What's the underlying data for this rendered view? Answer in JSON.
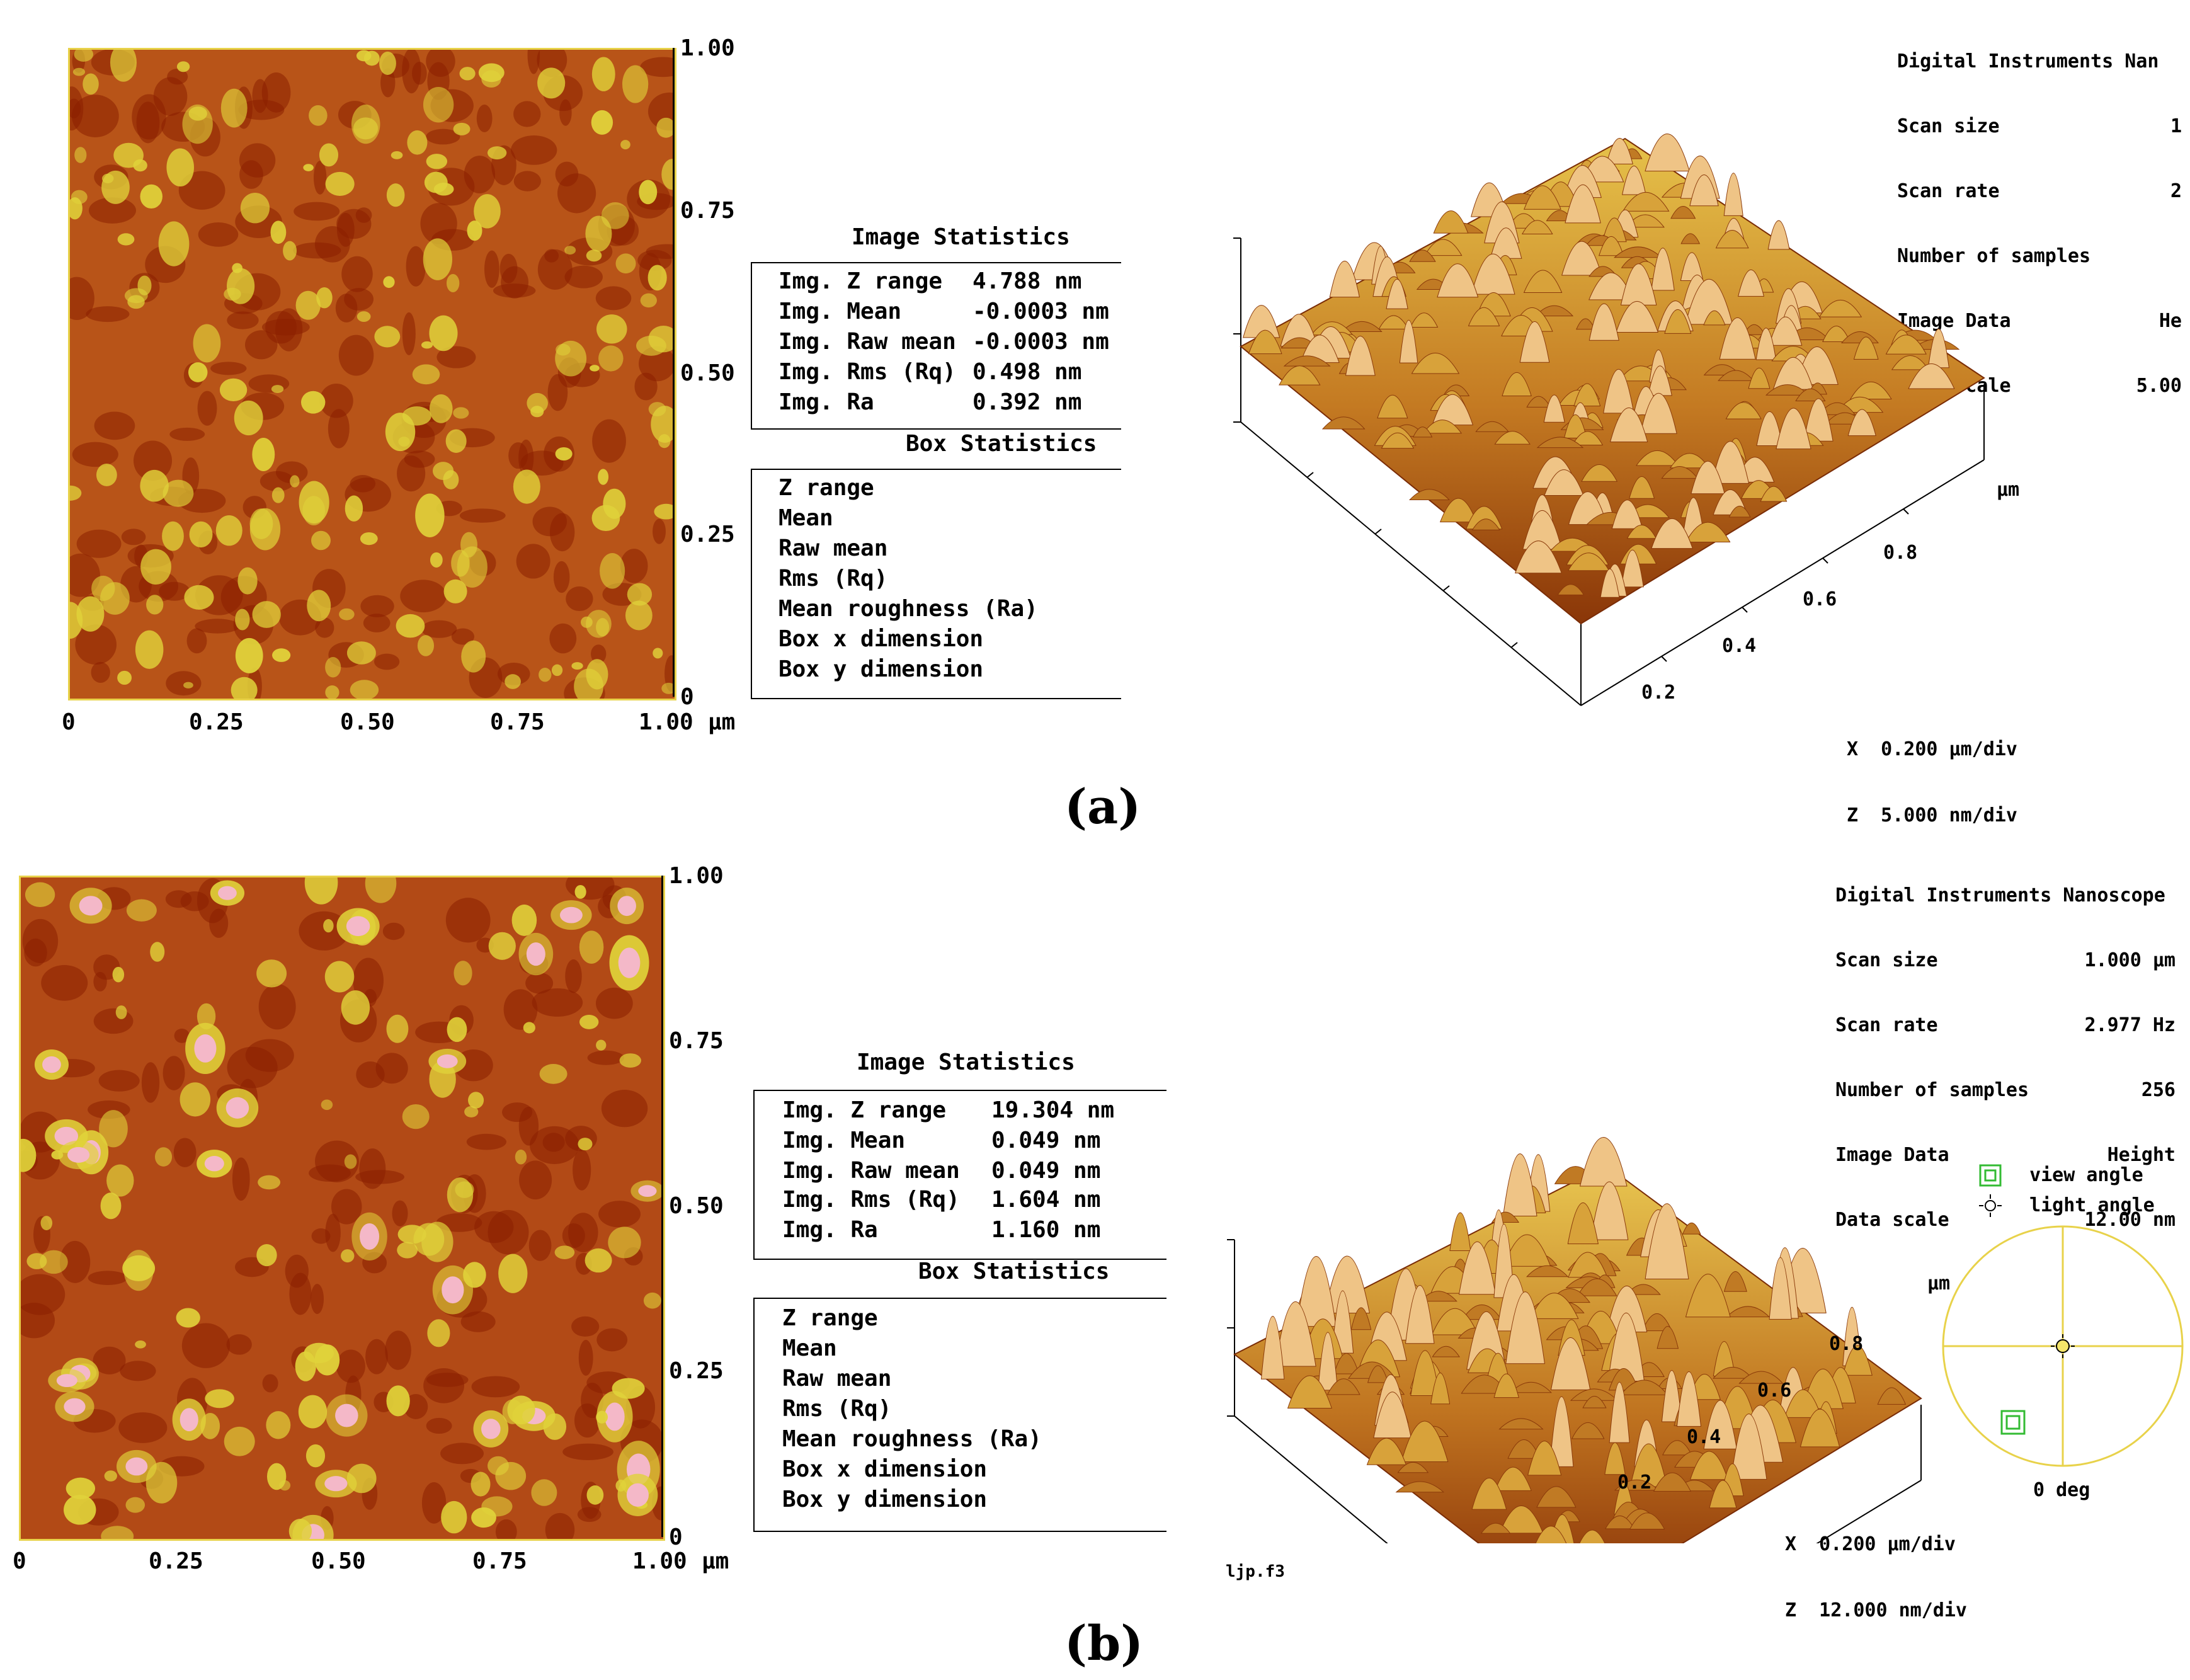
{
  "panel_a": {
    "caption": "(a)",
    "caption_letter": "a",
    "map_y_ticks": [
      "1.00",
      "0.75",
      "0.50",
      "0.25",
      "0"
    ],
    "map_x_ticks": [
      "0",
      "0.25",
      "0.50",
      "0.75",
      "1.00"
    ],
    "map_x_unit": "μm",
    "image_stats_title": "Image Statistics",
    "image_stats": [
      {
        "label": "Img. Z range",
        "value": "4.788 nm"
      },
      {
        "label": "Img. Mean",
        "value": "-0.0003 nm"
      },
      {
        "label": "Img. Raw mean",
        "value": "-0.0003 nm"
      },
      {
        "label": "Img. Rms (Rq)",
        "value": "0.498 nm"
      },
      {
        "label": "Img. Ra",
        "value": "0.392 nm"
      }
    ],
    "box_stats_title": "Box Statistics",
    "box_stats": [
      "Z range",
      "Mean",
      "Raw mean",
      "Rms (Rq)",
      "Mean roughness (Ra)",
      "Box x dimension",
      "Box y dimension"
    ],
    "instrument": [
      {
        "label": "Digital Instruments Nan",
        "value": ""
      },
      {
        "label": "Scan size",
        "value": "1"
      },
      {
        "label": "Scan rate",
        "value": "2"
      },
      {
        "label": "Number of samples",
        "value": ""
      },
      {
        "label": "Image Data",
        "value": "He"
      },
      {
        "label": "Data scale",
        "value": "5.00"
      }
    ],
    "axis_unit": "μm",
    "axis_ticks": [
      "0.8",
      "0.6",
      "0.4",
      "0.2"
    ],
    "x_div": "X  0.200 μm/div",
    "z_div": "Z  5.000 nm/div"
  },
  "panel_b": {
    "caption": "(b)",
    "caption_letter": "b",
    "map_y_ticks": [
      "1.00",
      "0.75",
      "0.50",
      "0.25",
      "0"
    ],
    "map_x_ticks": [
      "0",
      "0.25",
      "0.50",
      "0.75",
      "1.00"
    ],
    "map_x_unit": "μm",
    "image_stats_title": "Image Statistics",
    "image_stats": [
      {
        "label": "Img. Z range",
        "value": "19.304 nm"
      },
      {
        "label": "Img. Mean",
        "value": "0.049 nm"
      },
      {
        "label": "Img. Raw mean",
        "value": "0.049 nm"
      },
      {
        "label": "Img. Rms (Rq)",
        "value": "1.604 nm"
      },
      {
        "label": "Img. Ra",
        "value": "1.160 nm"
      }
    ],
    "box_stats_title": "Box Statistics",
    "box_stats": [
      "Z range",
      "Mean",
      "Raw mean",
      "Rms (Rq)",
      "Mean roughness (Ra)",
      "Box x dimension",
      "Box y dimension"
    ],
    "instrument": [
      {
        "label": "Digital Instruments Nanoscope",
        "value": ""
      },
      {
        "label": "Scan size",
        "value": "1.000 μm"
      },
      {
        "label": "Scan rate",
        "value": "2.977 Hz"
      },
      {
        "label": "Number of samples",
        "value": "256"
      },
      {
        "label": "Image Data",
        "value": "Height"
      },
      {
        "label": "Data scale",
        "value": "12.00 nm"
      }
    ],
    "axis_unit": "μm",
    "axis_ticks": [
      "0.8",
      "0.6",
      "0.4",
      "0.2"
    ],
    "x_div": "X  0.200 μm/div",
    "z_div": "Z  12.000 nm/div",
    "view_angle_label": "view angle",
    "light_angle_label": "light angle",
    "angle_deg": "0 deg",
    "filename": "ljp.f3"
  },
  "colors": {
    "map_dark": "#8a1f00",
    "map_mid": "#c4661a",
    "map_light": "#e0d23a",
    "map_peak": "#f4b8c8",
    "legend_green": "#33bb33",
    "widget_yellow": "#e8d24a"
  }
}
